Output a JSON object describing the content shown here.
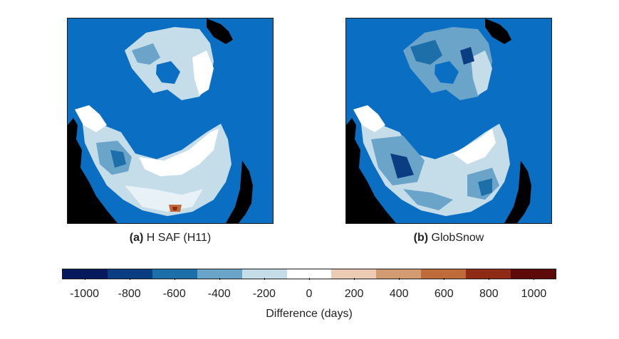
{
  "panels": [
    {
      "id": "a",
      "caption_letter": "(a)",
      "caption_text": " H SAF (H11)",
      "map_type": "polar-stereographic-snow-difference"
    },
    {
      "id": "b",
      "caption_letter": "(b)",
      "caption_text": " GlobSnow",
      "map_type": "polar-stereographic-snow-difference"
    }
  ],
  "colors": {
    "ocean": "#0a6fc2",
    "land_nodata": "#000000",
    "snow_zero": "#ffffff",
    "frame": "#1a1a1a"
  },
  "colorbar": {
    "label": "Difference (days)",
    "ticks": [
      "-1000",
      "-800",
      "-600",
      "-400",
      "-200",
      "0",
      "200",
      "400",
      "600",
      "800",
      "1000"
    ],
    "range": [
      -1100,
      1100
    ],
    "colors": [
      "#05195c",
      "#0a3d82",
      "#1c6fa8",
      "#6aa4c9",
      "#c5dce9",
      "#ffffff",
      "#eccbb4",
      "#d29b72",
      "#bf6a3a",
      "#8f2a15",
      "#5e0a0a"
    ]
  }
}
